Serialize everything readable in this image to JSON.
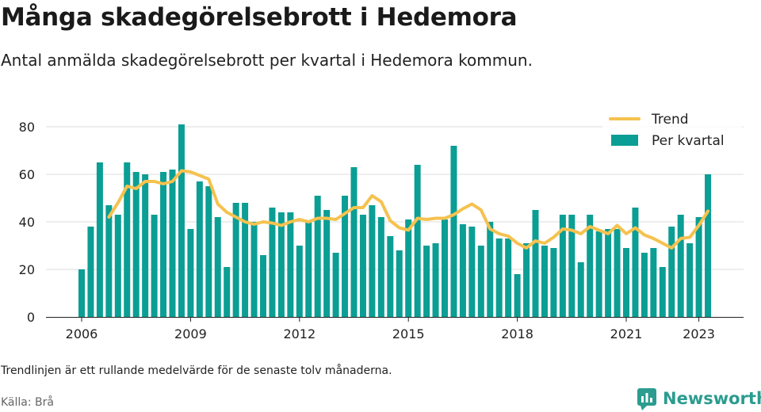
{
  "header": {
    "title": "Många skadegörelsebrott i Hedemora",
    "subtitle": "Antal anmälda skadegörelsebrott per kvartal i Hedemora kommun."
  },
  "footer": {
    "note": "Trendlinjen är ett rullande medelvärde för de senaste tolv månaderna.",
    "source": "Källa: Brå",
    "brand": "Newsworthy"
  },
  "colors": {
    "bars": "#0b9e94",
    "trend": "#f5c24f",
    "grid": "#dddddd",
    "brand": "#2b9c8f"
  },
  "chart_data": {
    "type": "bar",
    "x_ticks": [
      "2006",
      "2009",
      "2012",
      "2015",
      "2018",
      "2021",
      "2023"
    ],
    "y_ticks": [
      0,
      20,
      40,
      60,
      80
    ],
    "ylim": [
      0,
      82
    ],
    "legend": {
      "position": "top-right",
      "entries": [
        {
          "label": "Trend",
          "kind": "line"
        },
        {
          "label": "Per kvartal",
          "kind": "bar"
        }
      ]
    },
    "categories": [
      "2006 Q1",
      "2006 Q2",
      "2006 Q3",
      "2006 Q4",
      "2007 Q1",
      "2007 Q2",
      "2007 Q3",
      "2007 Q4",
      "2008 Q1",
      "2008 Q2",
      "2008 Q3",
      "2008 Q4",
      "2009 Q1",
      "2009 Q2",
      "2009 Q3",
      "2009 Q4",
      "2010 Q1",
      "2010 Q2",
      "2010 Q3",
      "2010 Q4",
      "2011 Q1",
      "2011 Q2",
      "2011 Q3",
      "2011 Q4",
      "2012 Q1",
      "2012 Q2",
      "2012 Q3",
      "2012 Q4",
      "2013 Q1",
      "2013 Q2",
      "2013 Q3",
      "2013 Q4",
      "2014 Q1",
      "2014 Q2",
      "2014 Q3",
      "2014 Q4",
      "2015 Q1",
      "2015 Q2",
      "2015 Q3",
      "2015 Q4",
      "2016 Q1",
      "2016 Q2",
      "2016 Q3",
      "2016 Q4",
      "2017 Q1",
      "2017 Q2",
      "2017 Q3",
      "2017 Q4",
      "2018 Q1",
      "2018 Q2",
      "2018 Q3",
      "2018 Q4",
      "2019 Q1",
      "2019 Q2",
      "2019 Q3",
      "2019 Q4",
      "2020 Q1",
      "2020 Q2",
      "2020 Q3",
      "2020 Q4",
      "2021 Q1",
      "2021 Q2",
      "2021 Q3",
      "2021 Q4",
      "2022 Q1",
      "2022 Q2",
      "2022 Q3",
      "2022 Q4",
      "2023 Q1",
      "2023 Q2"
    ],
    "series": [
      {
        "name": "Per kvartal",
        "type": "bar",
        "values": [
          20,
          38,
          65,
          47,
          43,
          65,
          61,
          60,
          43,
          61,
          62,
          81,
          37,
          57,
          55,
          42,
          21,
          48,
          48,
          40,
          26,
          46,
          44,
          44,
          30,
          40,
          51,
          45,
          27,
          51,
          63,
          43,
          47,
          42,
          34,
          28,
          41,
          64,
          30,
          31,
          41,
          72,
          39,
          38,
          30,
          40,
          33,
          33,
          18,
          31,
          45,
          30,
          29,
          43,
          43,
          23,
          43,
          36,
          37,
          37,
          29,
          46,
          27,
          29,
          21,
          38,
          43,
          31,
          42,
          60
        ]
      },
      {
        "name": "Trend",
        "type": "line",
        "values": [
          null,
          null,
          null,
          42,
          48,
          55,
          54,
          57,
          57,
          56,
          57,
          61.5,
          61,
          59.5,
          58,
          47.5,
          44,
          42,
          40,
          39,
          40,
          39.5,
          38.5,
          40,
          41,
          40,
          41.5,
          41.5,
          41,
          43.5,
          46,
          46,
          51,
          48.5,
          40.5,
          37.5,
          36.5,
          41.5,
          41,
          41.5,
          41.5,
          43,
          45.5,
          47.5,
          45,
          37,
          35,
          34,
          31,
          29,
          32,
          31,
          33.5,
          37,
          36.5,
          35,
          38,
          36.5,
          35,
          38.5,
          35,
          37.5,
          34.5,
          33,
          31,
          29,
          33,
          33.5,
          38.5,
          44.5
        ]
      }
    ]
  }
}
